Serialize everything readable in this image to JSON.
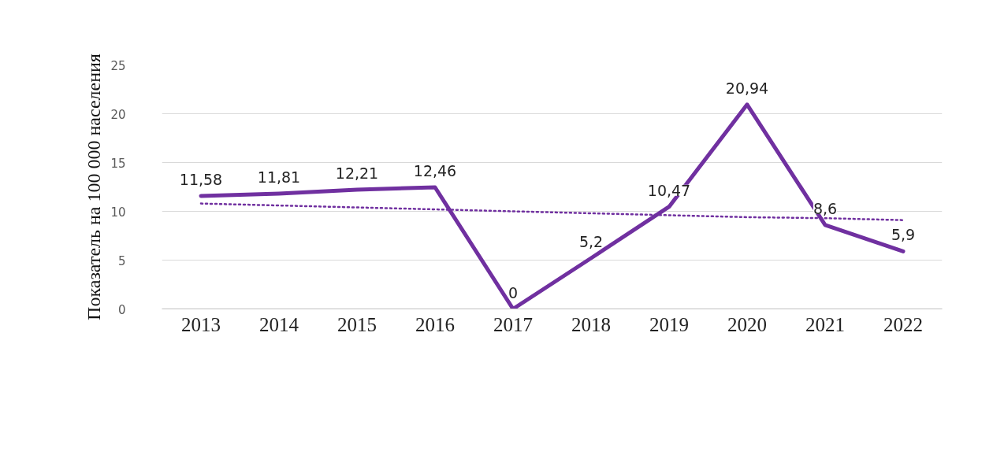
{
  "chart_data": {
    "type": "line",
    "ylabel": "Показатель на 100 000 населения",
    "categories": [
      "2013",
      "2014",
      "2015",
      "2016",
      "2017",
      "2018",
      "2019",
      "2020",
      "2021",
      "2022"
    ],
    "series": [
      {
        "color": "#7030a0",
        "values": [
          11.58,
          11.81,
          12.21,
          12.46,
          0,
          5.2,
          10.47,
          20.94,
          8.6,
          5.9
        ],
        "value_labels": [
          "11,58",
          "11,81",
          "12,21",
          "12,46",
          "0",
          "5,2",
          "10,47",
          "20,94",
          "8,6",
          "5,9"
        ]
      },
      {
        "type": "line",
        "color": "#7030a0",
        "line_style": "dotted",
        "values": [
          10.8,
          10.6,
          10.4,
          10.2,
          10.0,
          9.8,
          9.6,
          9.4,
          9.3,
          9.1
        ]
      }
    ],
    "ylim": [
      0,
      25
    ],
    "yticks": [
      0,
      5,
      10,
      15,
      20,
      25
    ],
    "grid": "y",
    "marker": "none",
    "line_style": "solid"
  }
}
